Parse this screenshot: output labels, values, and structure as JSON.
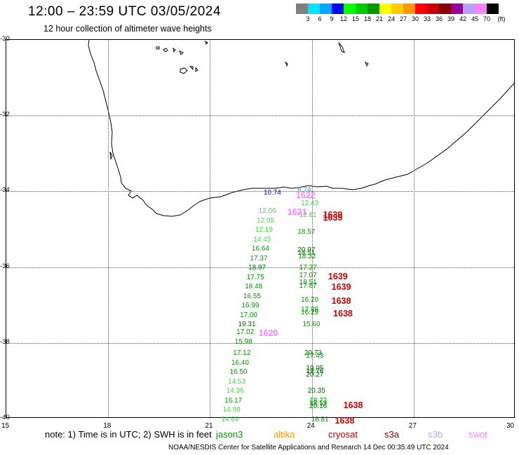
{
  "header": {
    "title": "12:00 – 23:59 UTC 03/05/2024",
    "subtitle": "12 hour collection of altimeter wave heights"
  },
  "colorbar": {
    "unit": "(ft)",
    "colors": [
      "#7f7f7f",
      "#00e5ff",
      "#00a8ff",
      "#0000ff",
      "#00ff00",
      "#00cc00",
      "#009900",
      "#ffff00",
      "#ffcc00",
      "#ff9900",
      "#ff0000",
      "#cc0000",
      "#880000",
      "#990099",
      "#b8a0ff",
      "#ff80ff",
      "#000000"
    ],
    "labels": [
      "3",
      "6",
      "9",
      "12",
      "15",
      "18",
      "21",
      "24",
      "27",
      "30",
      "33",
      "36",
      "39",
      "42",
      "45",
      "70"
    ]
  },
  "axes": {
    "lat_labels": [
      "-30",
      "-32",
      "-34",
      "-36",
      "-38",
      "-40"
    ],
    "lon_labels": [
      "15",
      "18",
      "21",
      "24",
      "27",
      "30"
    ]
  },
  "observations": [
    {
      "text": "10.74",
      "color": "#0000ff",
      "lon": 22.6,
      "lat": -34.07,
      "big": false
    },
    {
      "text": "6.74",
      "color": "#00a8ff",
      "lon": 23.6,
      "lat": -34.0,
      "big": false
    },
    {
      "text": "1622",
      "color": "#ff80ff",
      "lon": 23.55,
      "lat": -34.1,
      "big": true
    },
    {
      "text": "12.43",
      "color": "#44dd44",
      "lon": 23.7,
      "lat": -34.35,
      "big": false
    },
    {
      "text": "12.06",
      "color": "#44dd44",
      "lon": 22.45,
      "lat": -34.55,
      "big": false
    },
    {
      "text": "1621",
      "color": "#ff80ff",
      "lon": 23.3,
      "lat": -34.55,
      "big": true
    },
    {
      "text": "12.81",
      "color": "#44dd44",
      "lon": 23.65,
      "lat": -34.65,
      "big": false
    },
    {
      "text": "1639",
      "color": "#cc0000",
      "lon": 24.35,
      "lat": -34.63,
      "big": true
    },
    {
      "text": "1639",
      "color": "#cc0000",
      "lon": 24.35,
      "lat": -34.7,
      "big": true
    },
    {
      "text": "12.05",
      "color": "#44dd44",
      "lon": 22.4,
      "lat": -34.8,
      "big": false
    },
    {
      "text": "12.19",
      "color": "#44dd44",
      "lon": 22.35,
      "lat": -35.05,
      "big": false
    },
    {
      "text": "18.57",
      "color": "#009900",
      "lon": 23.6,
      "lat": -35.1,
      "big": false
    },
    {
      "text": "14.45",
      "color": "#44dd44",
      "lon": 22.3,
      "lat": -35.3,
      "big": false
    },
    {
      "text": "16.64",
      "color": "#009900",
      "lon": 22.25,
      "lat": -35.55,
      "big": false
    },
    {
      "text": "20.97",
      "color": "#006600",
      "lon": 23.6,
      "lat": -35.58,
      "big": false
    },
    {
      "text": "18.51",
      "color": "#009900",
      "lon": 23.6,
      "lat": -35.65,
      "big": false
    },
    {
      "text": "18.32",
      "color": "#009900",
      "lon": 23.62,
      "lat": -35.75,
      "big": false
    },
    {
      "text": "17.37",
      "color": "#009900",
      "lon": 22.2,
      "lat": -35.8,
      "big": false
    },
    {
      "text": "18.97",
      "color": "#006600",
      "lon": 22.15,
      "lat": -36.05,
      "big": false
    },
    {
      "text": "17.27",
      "color": "#009900",
      "lon": 23.65,
      "lat": -36.05,
      "big": false
    },
    {
      "text": "17.07",
      "color": "#009900",
      "lon": 23.65,
      "lat": -36.25,
      "big": false
    },
    {
      "text": "1639",
      "color": "#cc0000",
      "lon": 24.5,
      "lat": -36.25,
      "big": true
    },
    {
      "text": "17.75",
      "color": "#009900",
      "lon": 22.1,
      "lat": -36.3,
      "big": false
    },
    {
      "text": "18.51",
      "color": "#009900",
      "lon": 23.65,
      "lat": -36.43,
      "big": false
    },
    {
      "text": "17.87",
      "color": "#009900",
      "lon": 23.65,
      "lat": -36.52,
      "big": false
    },
    {
      "text": "1639",
      "color": "#cc0000",
      "lon": 24.6,
      "lat": -36.52,
      "big": true
    },
    {
      "text": "18.48",
      "color": "#009900",
      "lon": 22.05,
      "lat": -36.55,
      "big": false
    },
    {
      "text": "16.55",
      "color": "#009900",
      "lon": 22.0,
      "lat": -36.8,
      "big": false
    },
    {
      "text": "16.20",
      "color": "#009900",
      "lon": 23.7,
      "lat": -36.9,
      "big": false
    },
    {
      "text": "1638",
      "color": "#cc0000",
      "lon": 24.6,
      "lat": -36.9,
      "big": true
    },
    {
      "text": "16.99",
      "color": "#009900",
      "lon": 21.95,
      "lat": -37.05,
      "big": false
    },
    {
      "text": "17.98",
      "color": "#009900",
      "lon": 23.7,
      "lat": -37.15,
      "big": false
    },
    {
      "text": "16.29",
      "color": "#009900",
      "lon": 23.7,
      "lat": -37.23,
      "big": false
    },
    {
      "text": "1638",
      "color": "#cc0000",
      "lon": 24.65,
      "lat": -37.23,
      "big": true
    },
    {
      "text": "17.00",
      "color": "#009900",
      "lon": 21.9,
      "lat": -37.3,
      "big": false
    },
    {
      "text": "15.60",
      "color": "#009900",
      "lon": 23.75,
      "lat": -37.55,
      "big": false
    },
    {
      "text": "19.31",
      "color": "#006600",
      "lon": 21.85,
      "lat": -37.55,
      "big": false
    },
    {
      "text": "17.02",
      "color": "#009900",
      "lon": 21.8,
      "lat": -37.75,
      "big": false
    },
    {
      "text": "1620",
      "color": "#ff80ff",
      "lon": 22.45,
      "lat": -37.75,
      "big": true
    },
    {
      "text": "15.98",
      "color": "#009900",
      "lon": 21.75,
      "lat": -38.0,
      "big": false
    },
    {
      "text": "17.12",
      "color": "#009900",
      "lon": 21.7,
      "lat": -38.3,
      "big": false
    },
    {
      "text": "20.73",
      "color": "#006600",
      "lon": 23.8,
      "lat": -38.3,
      "big": false
    },
    {
      "text": "17.43",
      "color": "#009900",
      "lon": 23.85,
      "lat": -38.38,
      "big": false
    },
    {
      "text": "16.40",
      "color": "#009900",
      "lon": 21.65,
      "lat": -38.55,
      "big": false
    },
    {
      "text": "19.05",
      "color": "#006600",
      "lon": 23.85,
      "lat": -38.7,
      "big": false
    },
    {
      "text": "16.50",
      "color": "#009900",
      "lon": 21.6,
      "lat": -38.8,
      "big": false
    },
    {
      "text": "19.76",
      "color": "#006600",
      "lon": 23.85,
      "lat": -38.78,
      "big": false
    },
    {
      "text": "20.27",
      "color": "#006600",
      "lon": 23.85,
      "lat": -38.87,
      "big": false
    },
    {
      "text": "14.53",
      "color": "#44dd44",
      "lon": 21.55,
      "lat": -39.05,
      "big": false
    },
    {
      "text": "14.36",
      "color": "#44dd44",
      "lon": 21.5,
      "lat": -39.3,
      "big": false
    },
    {
      "text": "20.35",
      "color": "#006600",
      "lon": 23.9,
      "lat": -39.3,
      "big": false
    },
    {
      "text": "16.17",
      "color": "#009900",
      "lon": 21.45,
      "lat": -39.55,
      "big": false
    },
    {
      "text": "18.72",
      "color": "#009900",
      "lon": 23.95,
      "lat": -39.55,
      "big": false
    },
    {
      "text": "18.53",
      "color": "#009900",
      "lon": 23.95,
      "lat": -39.63,
      "big": false
    },
    {
      "text": "20.16",
      "color": "#006600",
      "lon": 23.95,
      "lat": -39.7,
      "big": false
    },
    {
      "text": "1638",
      "color": "#cc0000",
      "lon": 24.95,
      "lat": -39.65,
      "big": true
    },
    {
      "text": "14.99",
      "color": "#44dd44",
      "lon": 21.4,
      "lat": -39.8,
      "big": false
    },
    {
      "text": "18.81",
      "color": "#009900",
      "lon": 24.0,
      "lat": -40.05,
      "big": false
    },
    {
      "text": "1638",
      "color": "#cc0000",
      "lon": 24.7,
      "lat": -40.05,
      "big": true
    },
    {
      "text": "14.69",
      "color": "#44dd44",
      "lon": 21.35,
      "lat": -40.05,
      "big": false
    }
  ],
  "note": "note:  1) Time is in UTC; 2) SWH is in feet",
  "satellites": [
    {
      "name": "jason3",
      "color": "#009900"
    },
    {
      "name": "altika",
      "color": "#ff9900"
    },
    {
      "name": "cryosat",
      "color": "#cc0000"
    },
    {
      "name": "s3a",
      "color": "#880000"
    },
    {
      "name": "s3b",
      "color": "#b8a0ff"
    },
    {
      "name": "swot",
      "color": "#ff80ff"
    }
  ],
  "footer": "NOAA/NESDIS Center for Satellite Applications and Research    14 Dec 00:35:49 UTC 2024"
}
